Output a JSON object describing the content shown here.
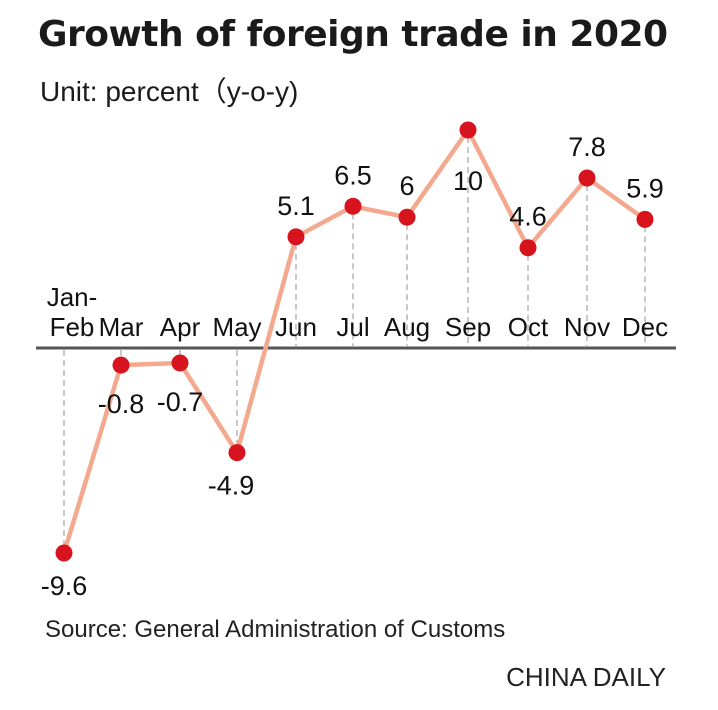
{
  "header": {
    "title": "Growth of foreign trade in 2020",
    "subtitle": "Unit: percent（y-o-y)"
  },
  "footer": {
    "source": "Source: General Administration of Customs",
    "credit": "CHINA DAILY"
  },
  "colors": {
    "line": "#f4a98f",
    "marker": "#d7141d",
    "axis": "#555555",
    "guide": "#aaaaaa",
    "text": "#111111"
  },
  "chart_data": {
    "type": "line",
    "categories": [
      [
        "Jan-",
        "Feb"
      ],
      [
        "Mar"
      ],
      [
        "Apr"
      ],
      [
        "May"
      ],
      [
        "Jun"
      ],
      [
        "Jul"
      ],
      [
        "Aug"
      ],
      [
        "Sep"
      ],
      [
        "Oct"
      ],
      [
        "Nov"
      ],
      [
        "Dec"
      ]
    ],
    "values": [
      -9.6,
      -0.8,
      -0.7,
      -4.9,
      5.1,
      6.5,
      6,
      10,
      4.6,
      7.8,
      5.9
    ],
    "value_labels": [
      "-9.6",
      "-0.8",
      "-0.7",
      "-4.9",
      "5.1",
      "6.5",
      "6",
      "10",
      "4.6",
      "7.8",
      "5.9"
    ],
    "ylim": [
      -9.6,
      10
    ],
    "grid": false,
    "legend": "none"
  }
}
